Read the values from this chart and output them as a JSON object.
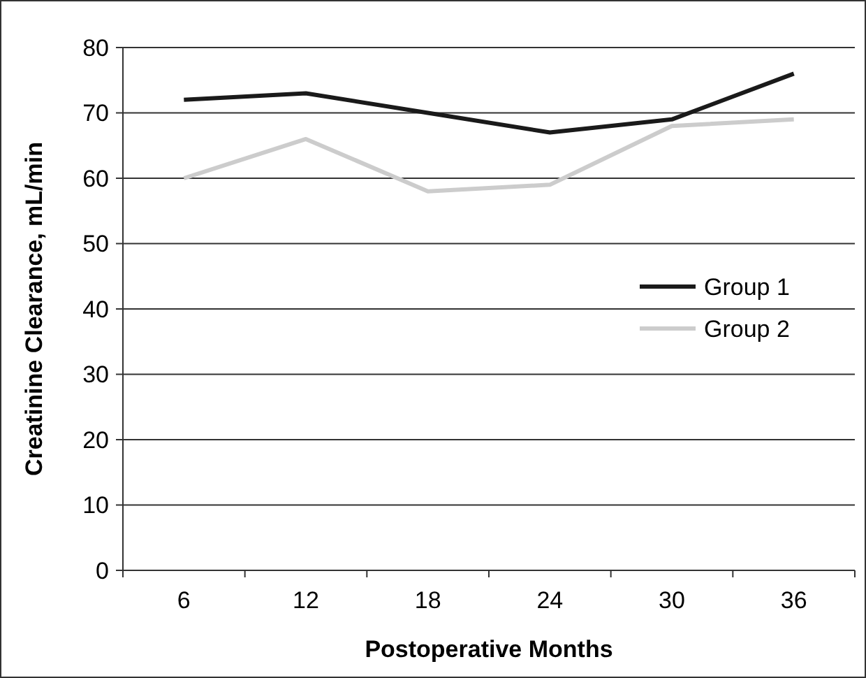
{
  "chart_data": {
    "type": "line",
    "xlabel": "Postoperative Months",
    "ylabel": "Creatinine Clearance, mL/min",
    "categories": [
      "6",
      "12",
      "18",
      "24",
      "30",
      "36"
    ],
    "series": [
      {
        "name": "Group 1",
        "color": "#1a1a1a",
        "values": [
          72,
          73,
          70,
          67,
          69,
          76
        ]
      },
      {
        "name": "Group 2",
        "color": "#cccccc",
        "values": [
          60,
          66,
          58,
          59,
          68,
          69
        ]
      }
    ],
    "ylim": [
      0,
      80
    ],
    "yticks": [
      0,
      10,
      20,
      30,
      40,
      50,
      60,
      70,
      80
    ],
    "grid": "y",
    "legend": "right",
    "marker": "none",
    "line_style": "solid"
  }
}
